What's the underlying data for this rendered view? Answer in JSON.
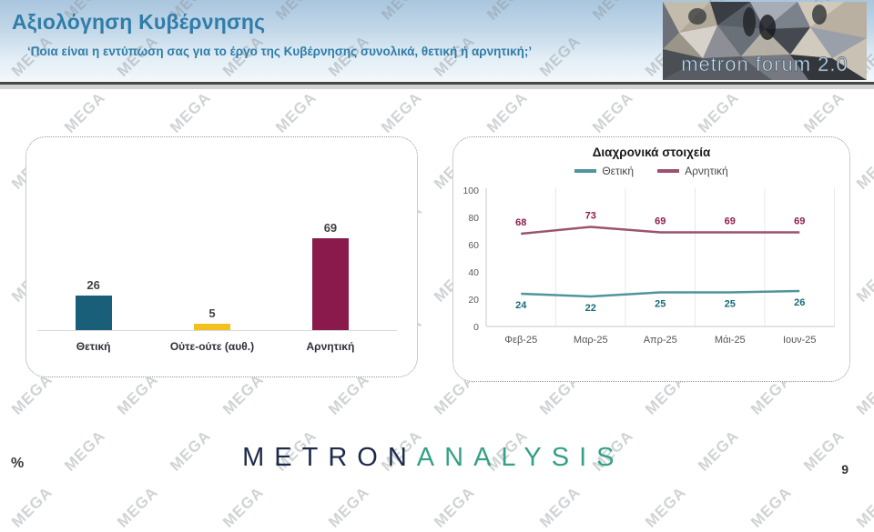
{
  "header": {
    "title": "Αξιολόγηση Κυβέρνησης",
    "subtitle": "‘Ποια είναι η εντύπωση σας για το έργο της Κυβέρνησης συνολικά, θετική ή αρνητική;’",
    "logo_text": "metron forum 2.0",
    "title_color": "#2f7da8"
  },
  "watermark": {
    "text": "MEGA"
  },
  "footer": {
    "percent_label": "%",
    "logo_metron": "METRON",
    "logo_analysis": "ANALYSIS",
    "page_number": "9"
  },
  "chart_data": [
    {
      "type": "bar",
      "title": "",
      "categories": [
        "Θετική",
        "Ούτε-ούτε (αυθ.)",
        "Αρνητική"
      ],
      "values": [
        26,
        5,
        69
      ],
      "colors": [
        "#1a5f7a",
        "#f2c120",
        "#8a1a4c"
      ],
      "ylim": [
        0,
        100
      ],
      "grid": "off",
      "value_labels": true
    },
    {
      "type": "line",
      "title": "Διαχρονικά στοιχεία",
      "categories": [
        "Φεβ-25",
        "Μαρ-25",
        "Απρ-25",
        "Μάι-25",
        "Ιουν-25"
      ],
      "series": [
        {
          "name": "Θετική",
          "color": "#4f949e",
          "label_color": "#176b77",
          "values": [
            24,
            22,
            25,
            25,
            26
          ]
        },
        {
          "name": "Αρνητική",
          "color": "#9a5270",
          "label_color": "#8e1e4e",
          "values": [
            68,
            73,
            69,
            69,
            69
          ]
        }
      ],
      "yticks": [
        0,
        20,
        40,
        60,
        80,
        100
      ],
      "ylim": [
        0,
        100
      ],
      "legend_position": "top",
      "grid": "vertical",
      "value_labels": true
    }
  ]
}
